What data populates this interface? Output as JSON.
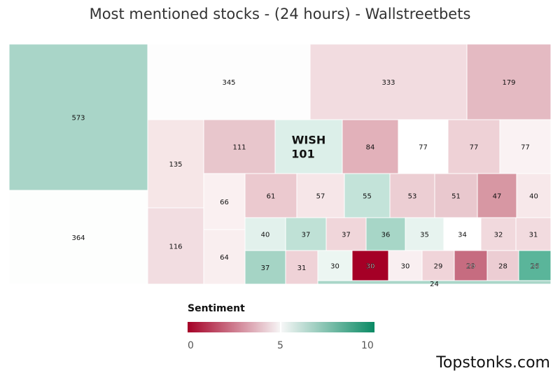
{
  "chart_data": {
    "type": "treemap",
    "title": "Most mentioned stocks - (24 hours) - Wallstreetbets",
    "sentiment_scale": [
      0,
      10
    ],
    "nodes": [
      {
        "label": "",
        "value": 573,
        "sentiment": 6.9,
        "color": "#a9d5c8"
      },
      {
        "label": "",
        "value": 364,
        "sentiment": 5.0,
        "color": "#fdfefd"
      },
      {
        "label": "",
        "value": 345,
        "sentiment": 5.0,
        "color": "#fdfdfd"
      },
      {
        "label": "",
        "value": 333,
        "sentiment": 4.3,
        "color": "#f2dce0"
      },
      {
        "label": "",
        "value": 179,
        "sentiment": 3.5,
        "color": "#e4bac2"
      },
      {
        "label": "",
        "value": 135,
        "sentiment": 4.5,
        "color": "#f6e6e7"
      },
      {
        "label": "",
        "value": 116,
        "sentiment": 4.3,
        "color": "#f2dde1"
      },
      {
        "label": "",
        "value": 111,
        "sentiment": 3.8,
        "color": "#e8c6cc"
      },
      {
        "label": "WISH",
        "value": 101,
        "sentiment": 5.6,
        "color": "#dcefe9"
      },
      {
        "label": "",
        "value": 84,
        "sentiment": 3.4,
        "color": "#e2b1ba"
      },
      {
        "label": "",
        "value": 77,
        "sentiment": 5.0,
        "color": "#ffffff"
      },
      {
        "label": "",
        "value": 77,
        "sentiment": 4.0,
        "color": "#eed1d6"
      },
      {
        "label": "",
        "value": 77,
        "sentiment": 4.8,
        "color": "#faf2f3"
      },
      {
        "label": "",
        "value": 66,
        "sentiment": 4.7,
        "color": "#faf0f1"
      },
      {
        "label": "",
        "value": 64,
        "sentiment": 4.6,
        "color": "#f9eeef"
      },
      {
        "label": "",
        "value": 61,
        "sentiment": 3.9,
        "color": "#ebc9cf"
      },
      {
        "label": "",
        "value": 57,
        "sentiment": 4.5,
        "color": "#f6e6e8"
      },
      {
        "label": "",
        "value": 55,
        "sentiment": 6.3,
        "color": "#c3e3d9"
      },
      {
        "label": "",
        "value": 53,
        "sentiment": 4.0,
        "color": "#ecced3"
      },
      {
        "label": "",
        "value": 51,
        "sentiment": 3.8,
        "color": "#e9c8ce"
      },
      {
        "label": "",
        "value": 47,
        "sentiment": 3.0,
        "color": "#d797a3"
      },
      {
        "label": "",
        "value": 40,
        "sentiment": 4.6,
        "color": "#f7e8ea"
      },
      {
        "label": "",
        "value": 40,
        "sentiment": 5.5,
        "color": "#e2f1ec"
      },
      {
        "label": "",
        "value": 37,
        "sentiment": 6.4,
        "color": "#bfe1d6"
      },
      {
        "label": "",
        "value": 37,
        "sentiment": 4.2,
        "color": "#f0d6da"
      },
      {
        "label": "",
        "value": 36,
        "sentiment": 6.8,
        "color": "#a7d6c7"
      },
      {
        "label": "",
        "value": 35,
        "sentiment": 5.6,
        "color": "#e7f3ef"
      },
      {
        "label": "",
        "value": 34,
        "sentiment": 5.0,
        "color": "#ffffff"
      },
      {
        "label": "",
        "value": 32,
        "sentiment": 4.3,
        "color": "#f1d9dd"
      },
      {
        "label": "",
        "value": 31,
        "sentiment": 4.3,
        "color": "#f2dbdf"
      },
      {
        "label": "",
        "value": 37,
        "sentiment": 6.7,
        "color": "#a5d4c5"
      },
      {
        "label": "",
        "value": 31,
        "sentiment": 4.1,
        "color": "#efd2d7"
      },
      {
        "label": "",
        "value": 30,
        "sentiment": 5.3,
        "color": "#ecf6f2"
      },
      {
        "label": "",
        "value": 30,
        "sentiment": 0.3,
        "color": "#a50026"
      },
      {
        "label": "",
        "value": 30,
        "sentiment": 4.8,
        "color": "#f9eff1"
      },
      {
        "label": "",
        "value": 29,
        "sentiment": 4.2,
        "color": "#f0d4d9"
      },
      {
        "label": "",
        "value": 29,
        "sentiment": 2.3,
        "color": "#c66c80"
      },
      {
        "label": "",
        "value": 28,
        "sentiment": 4.0,
        "color": "#eccdd3"
      },
      {
        "label": "",
        "value": 26,
        "sentiment": 7.8,
        "color": "#5ab59a"
      },
      {
        "label": "",
        "value": 24,
        "sentiment": 6.8,
        "color": "#a9d6c8"
      }
    ],
    "legend": {
      "title": "Sentiment",
      "ticks": [
        "0",
        "5",
        "10"
      ],
      "position": "bottom-center"
    }
  },
  "watermark": "Topstonks.com"
}
